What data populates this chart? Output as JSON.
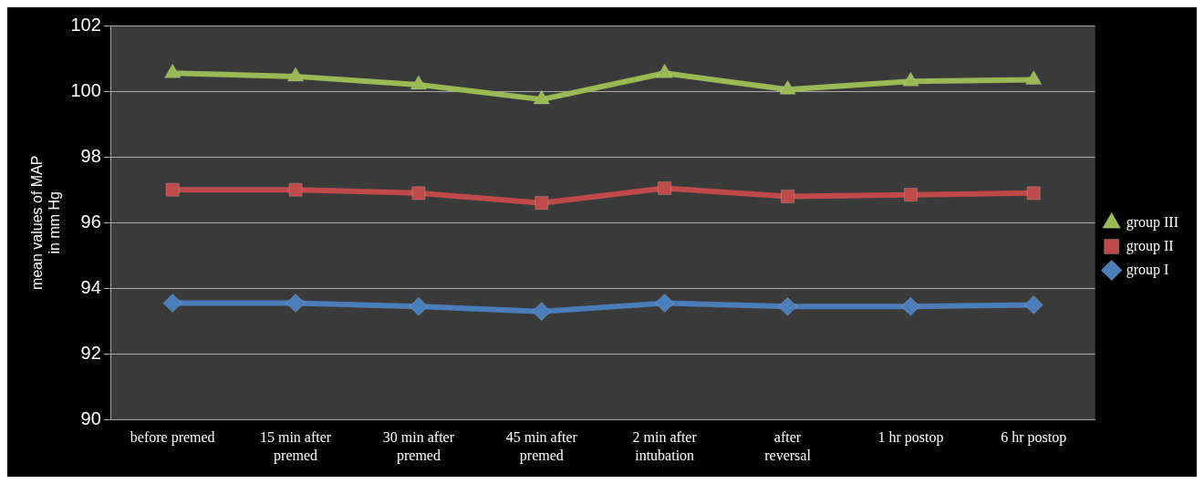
{
  "chart_data": {
    "type": "line",
    "ylabel": "mean values of MAP in mm Hg",
    "categories": [
      "before premed",
      "15 min after premed",
      "30 min after premed",
      "45 min after premed",
      "2 min after intubation",
      "after reversal",
      "1 hr postop",
      "6 hr postop"
    ],
    "series": [
      {
        "name": "group I",
        "color": "#4a7ebb",
        "marker": "diamond",
        "values": [
          93.55,
          93.55,
          93.45,
          93.3,
          93.55,
          93.45,
          93.45,
          93.5
        ]
      },
      {
        "name": "group II",
        "color": "#be4b48",
        "marker": "square",
        "values": [
          97.0,
          97.0,
          96.9,
          96.6,
          97.05,
          96.8,
          96.85,
          96.9
        ]
      },
      {
        "name": "group III",
        "color": "#98b954",
        "marker": "triangle",
        "values": [
          100.55,
          100.45,
          100.2,
          99.75,
          100.55,
          100.05,
          100.3,
          100.35
        ]
      }
    ],
    "ylim": [
      90,
      102
    ],
    "yticks": [
      90,
      92,
      94,
      96,
      98,
      100,
      102
    ],
    "grid": "y",
    "legend": "right",
    "line_style": "solid"
  }
}
